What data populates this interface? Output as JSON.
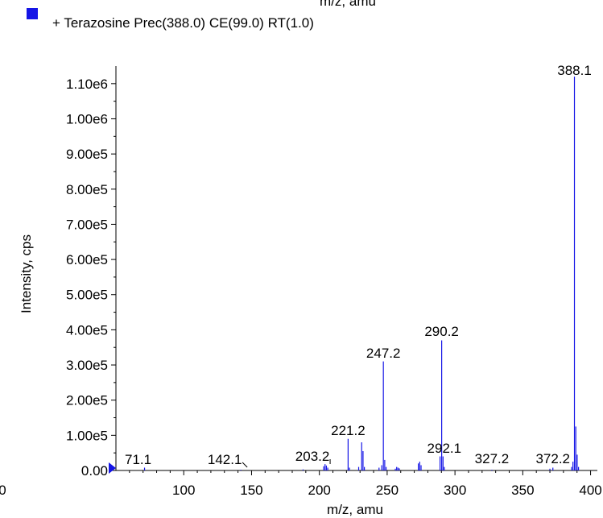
{
  "chart_data": {
    "type": "bar",
    "title_partial": "m/z, amu",
    "legend": {
      "marker_color": "#1515e6",
      "text": "+ Terazosine Prec(388.0) CE(99.0) RT(1.0)"
    },
    "xlabel": "m/z, amu",
    "ylabel": "Intensity, cps",
    "x_tick_labels": [
      "0",
      "100",
      "150",
      "200",
      "250",
      "300",
      "350",
      "400"
    ],
    "y_tick_labels": [
      "0.00",
      "1.00e5",
      "2.00e5",
      "3.00e5",
      "4.00e5",
      "5.00e5",
      "6.00e5",
      "7.00e5",
      "8.00e5",
      "9.00e5",
      "1.00e6",
      "1.10e6"
    ],
    "xlim": [
      50,
      405
    ],
    "ylim": [
      0,
      1150000
    ],
    "series_color": "#1515e6",
    "peaks": [
      {
        "x": 71.1,
        "y": 8000
      },
      {
        "x": 142.1,
        "y": 2000
      },
      {
        "x": 188.0,
        "y": 3000
      },
      {
        "x": 203.2,
        "y": 12000
      },
      {
        "x": 204.2,
        "y": 18000
      },
      {
        "x": 205.2,
        "y": 14000
      },
      {
        "x": 206.2,
        "y": 8000
      },
      {
        "x": 221.2,
        "y": 90000
      },
      {
        "x": 222.2,
        "y": 8000
      },
      {
        "x": 229.0,
        "y": 10000
      },
      {
        "x": 231.2,
        "y": 80000
      },
      {
        "x": 232.2,
        "y": 55000
      },
      {
        "x": 233.2,
        "y": 10000
      },
      {
        "x": 244.0,
        "y": 8000
      },
      {
        "x": 246.0,
        "y": 15000
      },
      {
        "x": 247.2,
        "y": 310000
      },
      {
        "x": 248.2,
        "y": 30000
      },
      {
        "x": 249.2,
        "y": 10000
      },
      {
        "x": 256.0,
        "y": 5000
      },
      {
        "x": 257.0,
        "y": 10000
      },
      {
        "x": 258.0,
        "y": 8000
      },
      {
        "x": 259.0,
        "y": 6000
      },
      {
        "x": 273.0,
        "y": 20000
      },
      {
        "x": 274.0,
        "y": 25000
      },
      {
        "x": 275.0,
        "y": 15000
      },
      {
        "x": 289.0,
        "y": 40000
      },
      {
        "x": 290.2,
        "y": 370000
      },
      {
        "x": 291.2,
        "y": 40000
      },
      {
        "x": 292.1,
        "y": 10000
      },
      {
        "x": 327.2,
        "y": 2000
      },
      {
        "x": 370.0,
        "y": 5000
      },
      {
        "x": 372.2,
        "y": 8000
      },
      {
        "x": 386.0,
        "y": 10000
      },
      {
        "x": 387.0,
        "y": 25000
      },
      {
        "x": 388.1,
        "y": 1120000
      },
      {
        "x": 389.1,
        "y": 125000
      },
      {
        "x": 390.1,
        "y": 45000
      },
      {
        "x": 391.1,
        "y": 10000
      }
    ],
    "annotations": [
      "71.1",
      "142.1",
      "203.2",
      "221.2",
      "247.2",
      "290.2",
      "292.1",
      "327.2",
      "372.2",
      "388.1"
    ]
  }
}
